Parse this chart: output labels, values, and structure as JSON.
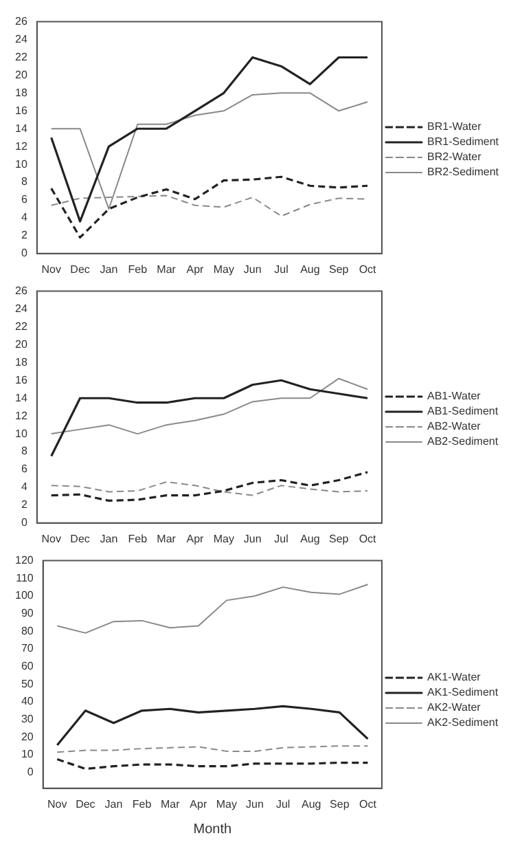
{
  "chart_data": [
    {
      "type": "line",
      "categories": [
        "Nov",
        "Dec",
        "Jan",
        "Feb",
        "Mar",
        "Apr",
        "May",
        "Jun",
        "Jul",
        "Aug",
        "Sep",
        "Oct"
      ],
      "ylim": [
        0,
        26
      ],
      "yticks": [
        0,
        2,
        4,
        6,
        8,
        10,
        12,
        14,
        16,
        18,
        20,
        22,
        24,
        26
      ],
      "grid": false,
      "legend": "right",
      "marker": "none",
      "series": [
        {
          "name": "BR1-Water",
          "color": "#222222",
          "line_style": "dashed",
          "values": [
            7.3,
            1.8,
            5,
            6.3,
            7.2,
            6.1,
            8.2,
            8.3,
            8.6,
            7.6,
            7.4,
            7.6
          ]
        },
        {
          "name": "BR1-Sediment",
          "color": "#222222",
          "line_style": "solid",
          "values": [
            13,
            3.6,
            12,
            14,
            14,
            16,
            18,
            22,
            21,
            19,
            22,
            22
          ]
        },
        {
          "name": "BR2-Water",
          "color": "#888888",
          "line_style": "dashed",
          "values": [
            5.4,
            6.2,
            6.3,
            6.4,
            6.5,
            5.4,
            5.2,
            6.3,
            4.2,
            5.5,
            6.2,
            6.1
          ]
        },
        {
          "name": "BR2-Sediment",
          "color": "#888888",
          "line_style": "solid",
          "values": [
            14,
            14,
            5,
            14.5,
            14.5,
            15.5,
            16,
            17.8,
            18,
            18,
            16,
            17
          ]
        }
      ]
    },
    {
      "type": "line",
      "categories": [
        "Nov",
        "Dec",
        "Jan",
        "Feb",
        "Mar",
        "Apr",
        "May",
        "Jun",
        "Jul",
        "Aug",
        "Sep",
        "Oct"
      ],
      "ylim": [
        0,
        26
      ],
      "yticks": [
        0,
        2,
        4,
        6,
        8,
        10,
        12,
        14,
        16,
        18,
        20,
        22,
        24,
        26
      ],
      "grid": false,
      "legend": "right",
      "marker": "none",
      "series": [
        {
          "name": "AB1-Water",
          "color": "#222222",
          "line_style": "dashed",
          "values": [
            3.1,
            3.2,
            2.5,
            2.6,
            3.1,
            3.1,
            3.6,
            4.5,
            4.8,
            4.2,
            4.8,
            5.7
          ]
        },
        {
          "name": "AB1-Sediment",
          "color": "#222222",
          "line_style": "solid",
          "values": [
            7.5,
            14,
            14,
            13.5,
            13.5,
            14,
            14,
            15.5,
            16,
            15,
            14.5,
            14
          ]
        },
        {
          "name": "AB2-Water",
          "color": "#888888",
          "line_style": "dashed",
          "values": [
            4.2,
            4.1,
            3.5,
            3.6,
            4.6,
            4.2,
            3.5,
            3.1,
            4.2,
            3.8,
            3.5,
            3.6
          ]
        },
        {
          "name": "AB2-Sediment",
          "color": "#888888",
          "line_style": "solid",
          "values": [
            10,
            10.5,
            11,
            10,
            11,
            11.5,
            12.2,
            13.6,
            14,
            14,
            16.2,
            15
          ]
        }
      ]
    },
    {
      "type": "line",
      "xlabel": "Month",
      "categories": [
        "Nov",
        "Dec",
        "Jan",
        "Feb",
        "Mar",
        "Apr",
        "May",
        "Jun",
        "Jul",
        "Aug",
        "Sep",
        "Oct"
      ],
      "ylim": [
        -9,
        120
      ],
      "yticks": [
        0,
        10,
        20,
        30,
        40,
        50,
        60,
        70,
        80,
        90,
        100,
        110,
        120
      ],
      "grid": false,
      "legend": "right",
      "marker": "none",
      "series": [
        {
          "name": "AK1-Water",
          "color": "#222222",
          "line_style": "dashed",
          "values": [
            7.5,
            2,
            3.5,
            4.5,
            4.5,
            3.5,
            3.5,
            5,
            5,
            5,
            5.5,
            5.5
          ]
        },
        {
          "name": "AK1-Sediment",
          "color": "#222222",
          "line_style": "solid",
          "values": [
            15.5,
            35,
            28,
            35,
            36,
            34,
            35,
            36,
            37.5,
            36,
            34,
            19
          ]
        },
        {
          "name": "AK2-Water",
          "color": "#888888",
          "line_style": "dashed",
          "values": [
            11.5,
            12.5,
            12.5,
            13.5,
            14,
            14.5,
            12,
            12,
            14,
            14.5,
            15,
            15
          ]
        },
        {
          "name": "AK2-Sediment",
          "color": "#888888",
          "line_style": "solid",
          "values": [
            83,
            79,
            85.5,
            86,
            82,
            83,
            97.5,
            100,
            105,
            102,
            101,
            106.5
          ]
        }
      ]
    }
  ]
}
